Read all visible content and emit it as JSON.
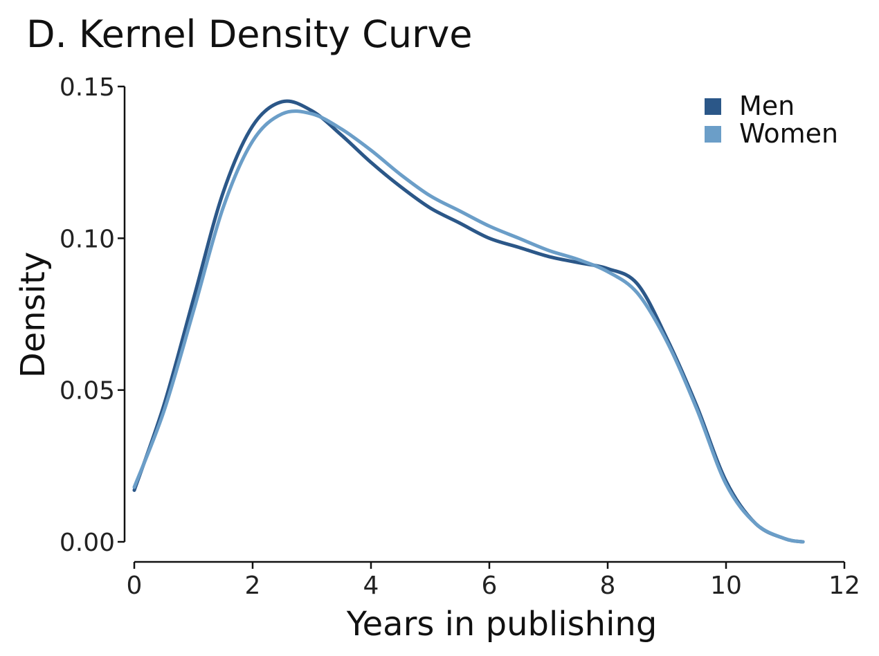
{
  "chart_data": {
    "type": "line",
    "title": "D. Kernel Density Curve",
    "xlabel": "Years in publishing",
    "ylabel": "Density",
    "xlim": [
      0,
      12
    ],
    "ylim": [
      0,
      0.15
    ],
    "xticks": [
      0,
      2,
      4,
      6,
      8,
      10,
      12
    ],
    "xtick_labels": [
      "0",
      "2",
      "4",
      "6",
      "8",
      "10",
      "12"
    ],
    "yticks": [
      0,
      0.05,
      0.1,
      0.15
    ],
    "ytick_labels": [
      "0.00",
      "0.05",
      "0.10",
      "0.15"
    ],
    "grid": false,
    "legend": "top-right",
    "series": [
      {
        "name": "Men",
        "color": "#2b5788",
        "x": [
          0,
          0.5,
          1,
          1.5,
          2,
          2.5,
          3,
          3.5,
          4,
          4.5,
          5,
          5.5,
          6,
          6.5,
          7,
          7.5,
          8,
          8.5,
          9,
          9.5,
          10,
          10.5,
          11,
          11.3
        ],
        "y": [
          0.017,
          0.045,
          0.08,
          0.115,
          0.137,
          0.145,
          0.142,
          0.134,
          0.125,
          0.117,
          0.11,
          0.105,
          0.1,
          0.097,
          0.094,
          0.092,
          0.09,
          0.085,
          0.067,
          0.045,
          0.02,
          0.006,
          0.001,
          0.0
        ]
      },
      {
        "name": "Women",
        "color": "#6b9ec8",
        "x": [
          0,
          0.5,
          1,
          1.5,
          2,
          2.5,
          3,
          3.5,
          4,
          4.5,
          5,
          5.5,
          6,
          6.5,
          7,
          7.5,
          8,
          8.5,
          9,
          9.5,
          10,
          10.5,
          11,
          11.3
        ],
        "y": [
          0.018,
          0.043,
          0.076,
          0.11,
          0.132,
          0.141,
          0.141,
          0.136,
          0.129,
          0.121,
          0.114,
          0.109,
          0.104,
          0.1,
          0.096,
          0.093,
          0.089,
          0.082,
          0.066,
          0.044,
          0.019,
          0.006,
          0.001,
          0.0
        ]
      }
    ]
  }
}
